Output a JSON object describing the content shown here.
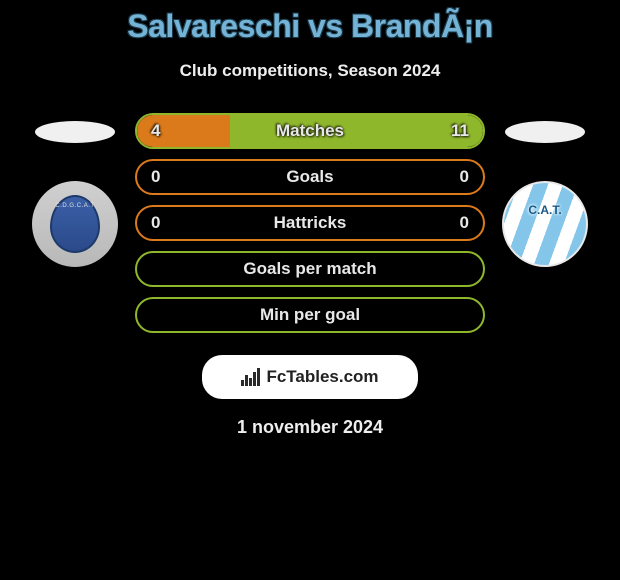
{
  "title": "Salvareschi vs BrandÃ¡n",
  "subtitle": "Club competitions, Season 2024",
  "date": "1 november 2024",
  "branding": "FcTables.com",
  "colors": {
    "title": "#74b3d6",
    "accent_orange": "#db7a1b",
    "accent_orange_dark": "#b5620f",
    "accent_green": "#8fb72c",
    "accent_green_dark": "#6f911f",
    "bg": "#000000"
  },
  "teams": {
    "left": {
      "crest_label": "Godoy Cruz",
      "crest_colors": [
        "#3a5fa8",
        "#d0d0d0"
      ]
    },
    "right": {
      "crest_label": "C.A.T.",
      "crest_colors": [
        "#6fbce6",
        "#ffffff"
      ]
    }
  },
  "stats": [
    {
      "label": "Matches",
      "left_value": "4",
      "right_value": "11",
      "left_pct": 27,
      "right_pct": 73,
      "left_color": "#db7a1b",
      "right_color": "#8fb72c",
      "border_color": "#8fb72c",
      "show_values": true
    },
    {
      "label": "Goals",
      "left_value": "0",
      "right_value": "0",
      "left_pct": 0,
      "right_pct": 0,
      "left_color": "#db7a1b",
      "right_color": "#8fb72c",
      "border_color": "#db7a1b",
      "show_values": true
    },
    {
      "label": "Hattricks",
      "left_value": "0",
      "right_value": "0",
      "left_pct": 0,
      "right_pct": 0,
      "left_color": "#db7a1b",
      "right_color": "#8fb72c",
      "border_color": "#db7a1b",
      "show_values": true
    },
    {
      "label": "Goals per match",
      "left_value": "",
      "right_value": "",
      "left_pct": 0,
      "right_pct": 0,
      "left_color": "#db7a1b",
      "right_color": "#8fb72c",
      "border_color": "#8fb72c",
      "show_values": false
    },
    {
      "label": "Min per goal",
      "left_value": "",
      "right_value": "",
      "left_pct": 0,
      "right_pct": 0,
      "left_color": "#db7a1b",
      "right_color": "#8fb72c",
      "border_color": "#8fb72c",
      "show_values": false
    }
  ]
}
